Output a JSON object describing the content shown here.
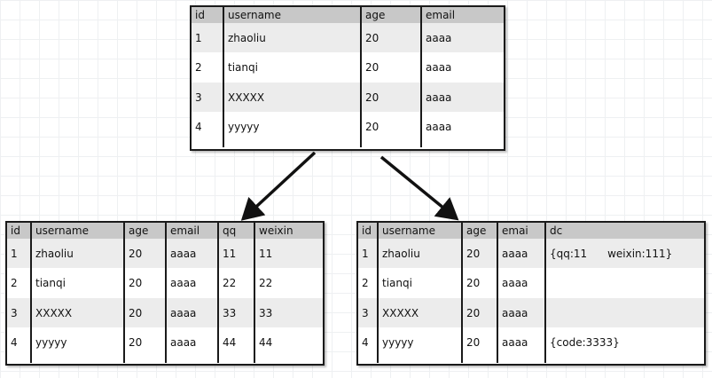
{
  "tables": [
    {
      "id": "source",
      "columns": [
        "id",
        "username",
        "age",
        "email"
      ],
      "rows": [
        [
          "1",
          "zhaoliu",
          "20",
          "aaaa"
        ],
        [
          "2",
          "tianqi",
          "20",
          "aaaa"
        ],
        [
          "3",
          "XXXXX",
          "20",
          "aaaa"
        ],
        [
          "4",
          "yyyyy",
          "20",
          "aaaa"
        ]
      ]
    },
    {
      "id": "wide-columns",
      "columns": [
        "id",
        "username",
        "age",
        "email",
        "qq",
        "weixin"
      ],
      "rows": [
        [
          "1",
          "zhaoliu",
          "20",
          "aaaa",
          "11",
          "11"
        ],
        [
          "2",
          "tianqi",
          "20",
          "aaaa",
          "22",
          "22"
        ],
        [
          "3",
          "XXXXX",
          "20",
          "aaaa",
          "33",
          "33"
        ],
        [
          "4",
          "yyyyy",
          "20",
          "aaaa",
          "44",
          "44"
        ]
      ]
    },
    {
      "id": "dynamic-column",
      "columns": [
        "id",
        "username",
        "age",
        "emai",
        "dc"
      ],
      "rows": [
        [
          "1",
          "zhaoliu",
          "20",
          "aaaa",
          "{qq:11      weixin:111}"
        ],
        [
          "2",
          "tianqi",
          "20",
          "aaaa",
          ""
        ],
        [
          "3",
          "XXXXX",
          "20",
          "aaaa",
          ""
        ],
        [
          "4",
          "yyyyy",
          "20",
          "aaaa",
          "{code:3333}"
        ]
      ]
    }
  ]
}
